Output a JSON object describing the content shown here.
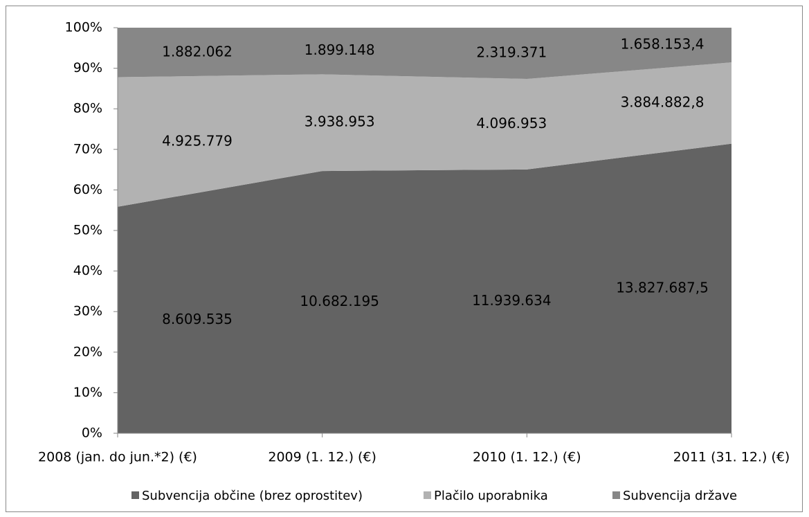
{
  "chart_data": {
    "type": "area",
    "stacking": "percent",
    "categories": [
      "2008 (jan. do jun.*2) (€)",
      "2009 (1. 12.) (€)",
      "2010 (1. 12.) (€)",
      "2011 (31. 12.) (€)"
    ],
    "series": [
      {
        "name": "Subvencija občine (brez oprostitev)",
        "color": "#636363",
        "values": [
          8609535,
          10682195,
          11939634,
          13827687.5
        ],
        "value_labels": [
          "8.609.535",
          "10.682.195",
          "11.939.634",
          "13.827.687,5"
        ]
      },
      {
        "name": "Plačilo uporabnika",
        "color": "#b2b2b2",
        "values": [
          4925779,
          3938953,
          4096953,
          3884882.8
        ],
        "value_labels": [
          "4.925.779",
          "3.938.953",
          "4.096.953",
          "3.884.882,8"
        ]
      },
      {
        "name": "Subvencija države",
        "color": "#878787",
        "values": [
          1882062,
          1899148,
          2319371,
          1658153.4
        ],
        "value_labels": [
          "1.882.062",
          "1.899.148",
          "2.319.371",
          "1.658.153,4"
        ]
      }
    ],
    "ylim": [
      0,
      100
    ],
    "yticks": [
      {
        "value": 0,
        "label": "0%"
      },
      {
        "value": 10,
        "label": "10%"
      },
      {
        "value": 20,
        "label": "20%"
      },
      {
        "value": 30,
        "label": "30%"
      },
      {
        "value": 40,
        "label": "40%"
      },
      {
        "value": 50,
        "label": "50%"
      },
      {
        "value": 60,
        "label": "60%"
      },
      {
        "value": 70,
        "label": "70%"
      },
      {
        "value": 80,
        "label": "80%"
      },
      {
        "value": 90,
        "label": "90%"
      },
      {
        "value": 100,
        "label": "100%"
      }
    ],
    "legend": "bottom"
  }
}
